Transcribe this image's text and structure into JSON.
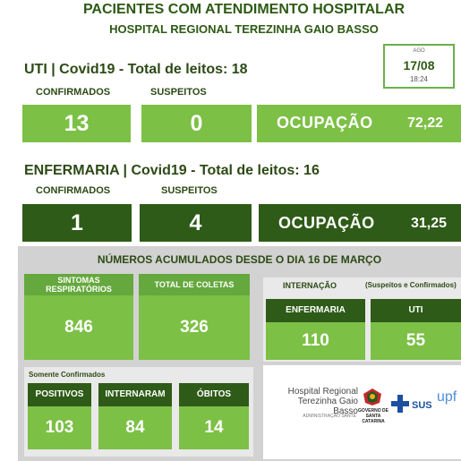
{
  "header": {
    "title": "PACIENTES COM ATENDIMENTO HOSPITALAR",
    "subtitle": "HOSPITAL REGIONAL TEREZINHA GAIO BASSO"
  },
  "date_box": {
    "ago": "AGO",
    "date": "17/08",
    "time": "18:24"
  },
  "uti": {
    "heading": "UTI | Covid19 - Total de leitos: 18",
    "confirmados_label": "CONFIRMADOS",
    "suspeitos_label": "SUSPEITOS",
    "confirmados": "13",
    "suspeitos": "0",
    "ocupacao_label": "OCUPAÇÃO",
    "ocupacao_value": "72,22"
  },
  "enfermaria": {
    "heading": "ENFERMARIA | Covid19 - Total de leitos: 16",
    "confirmados_label": "CONFIRMADOS",
    "suspeitos_label": "SUSPEITOS",
    "confirmados": "1",
    "suspeitos": "4",
    "ocupacao_label": "OCUPAÇÃO",
    "ocupacao_value": "31,25"
  },
  "acumulados": {
    "heading": "NÚMEROS ACUMULADOS DESDE O DIA 16 DE MARÇO",
    "sintomas_label": "SINTOMAS RESPIRATÓRIOS",
    "sintomas_value": "846",
    "coletas_label": "TOTAL DE COLETAS",
    "coletas_value": "326",
    "internacao_label": "INTERNAÇÃO",
    "internacao_note": "(Suspeitos e Confirmados)",
    "enfermaria_label": "ENFERMARIA",
    "enfermaria_value": "110",
    "uti_label": "UTI",
    "uti_value": "55",
    "somente_label": "Somente Confirmados",
    "positivos_label": "POSITIVOS",
    "positivos_value": "103",
    "internaram_label": "INTERNARAM",
    "internaram_value": "84",
    "obitos_label": "ÓBITOS",
    "obitos_value": "14"
  },
  "logos": {
    "hospital_line1": "Hospital Regional",
    "hospital_line2": "Terezinha Gaio Basso",
    "administracao": "ADMINISTRAÇÃO SANTÉ",
    "governo": "GOVERNO DE SANTA CATARINA",
    "sus": "SUS",
    "upf": "upf"
  }
}
